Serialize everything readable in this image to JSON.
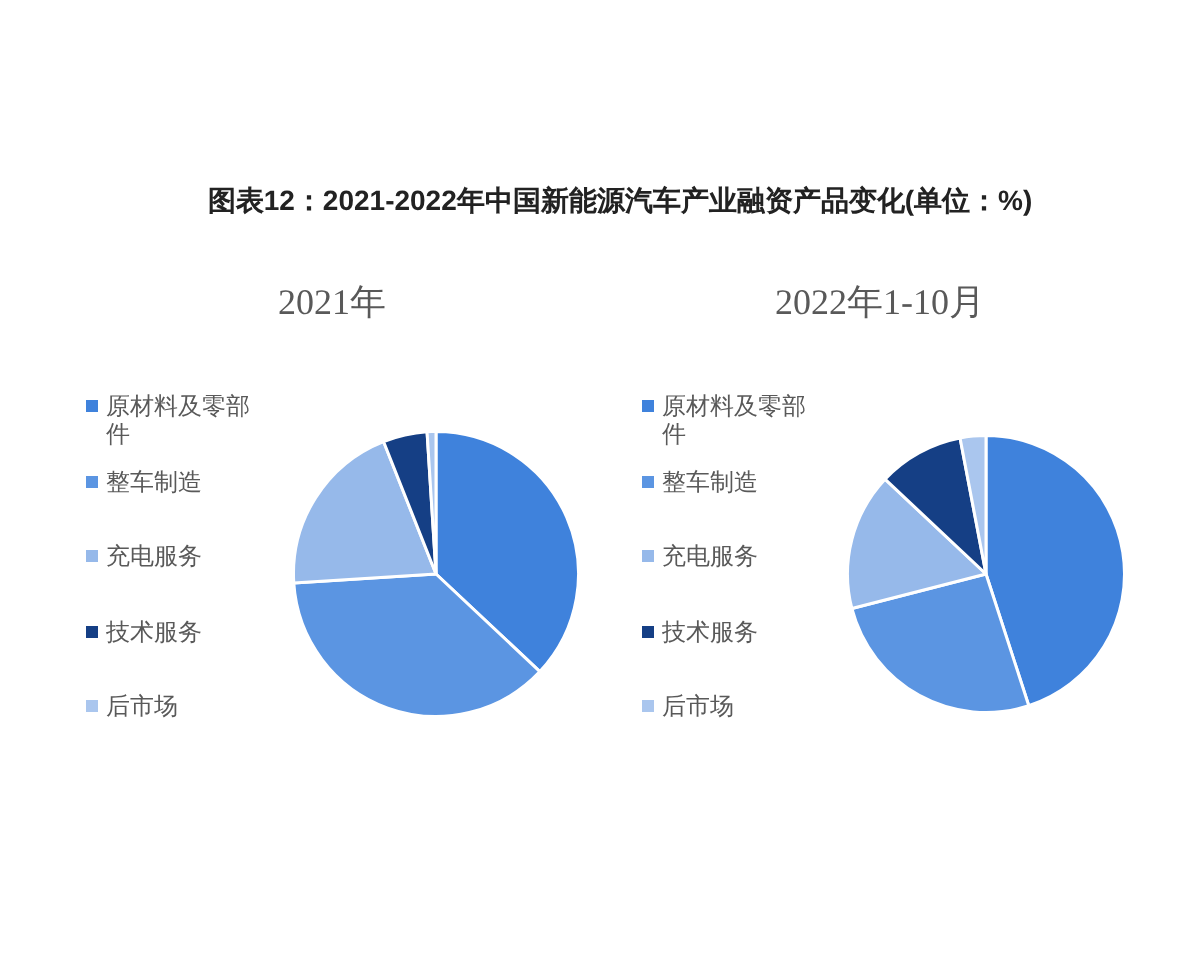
{
  "chart_data": [
    {
      "type": "pie",
      "title": "图表12：2021-2022年中国新能源汽车产业融资产品变化(单位：%)",
      "subtitle": "2021年",
      "categories": [
        "原材料及零部件",
        "整车制造",
        "充电服务",
        "技术服务",
        "后市场"
      ],
      "values": [
        37,
        37,
        20,
        5,
        1
      ],
      "colors": [
        "#3f82dc",
        "#5b95e2",
        "#96b9ea",
        "#153f85",
        "#aac6ee"
      ],
      "legend": "left"
    },
    {
      "type": "pie",
      "subtitle": "2022年1-10月",
      "categories": [
        "原材料及零部件",
        "整车制造",
        "充电服务",
        "技术服务",
        "后市场"
      ],
      "values": [
        45,
        26,
        16,
        10,
        3
      ],
      "colors": [
        "#3f82dc",
        "#5b95e2",
        "#96b9ea",
        "#153f85",
        "#aac6ee"
      ],
      "legend": "left"
    }
  ]
}
